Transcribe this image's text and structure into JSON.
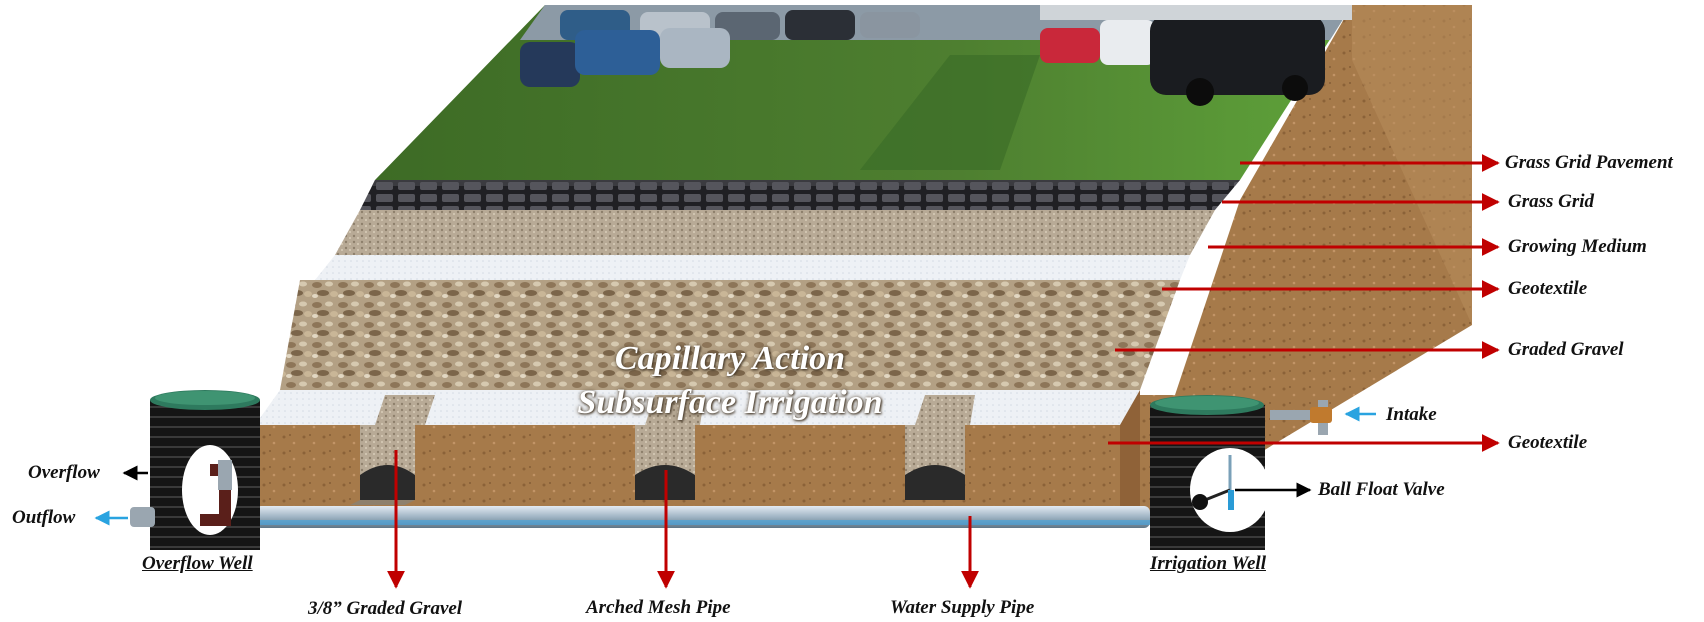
{
  "diagram": {
    "center_text": {
      "line1": "Capillary Action",
      "line2": "Subsurface Irrigation"
    },
    "layer_labels": {
      "grass_grid_pavement": "Grass Grid Pavement",
      "grass_grid": "Grass Grid",
      "growing_medium": "Growing Medium",
      "geotextile_upper": "Geotextile",
      "graded_gravel": "Graded Gravel",
      "geotextile_lower": "Geotextile"
    },
    "component_labels": {
      "intake": "Intake",
      "ball_float_valve": "Ball Float Valve",
      "overflow": "Overflow",
      "outflow": "Outflow",
      "overflow_well": "Overflow Well",
      "irrigation_well": "Irrigation Well",
      "graded_gravel_3_8": "3/8” Graded Gravel",
      "arched_mesh_pipe": "Arched Mesh Pipe",
      "water_supply_pipe": "Water Supply Pipe"
    },
    "colors": {
      "arrow_red": "#c00000",
      "arrow_blue": "#29a3e0",
      "arrow_black": "#000000",
      "grass": "#4f8a2e",
      "soil": "#a77a4c",
      "gravel": "#b09a7c",
      "geotextile": "#eef2f6",
      "grid": "#2a2a2e",
      "pipe": "#9fb4c4",
      "well": "#1e1e1e",
      "well_lid": "#2e7a5e"
    }
  }
}
